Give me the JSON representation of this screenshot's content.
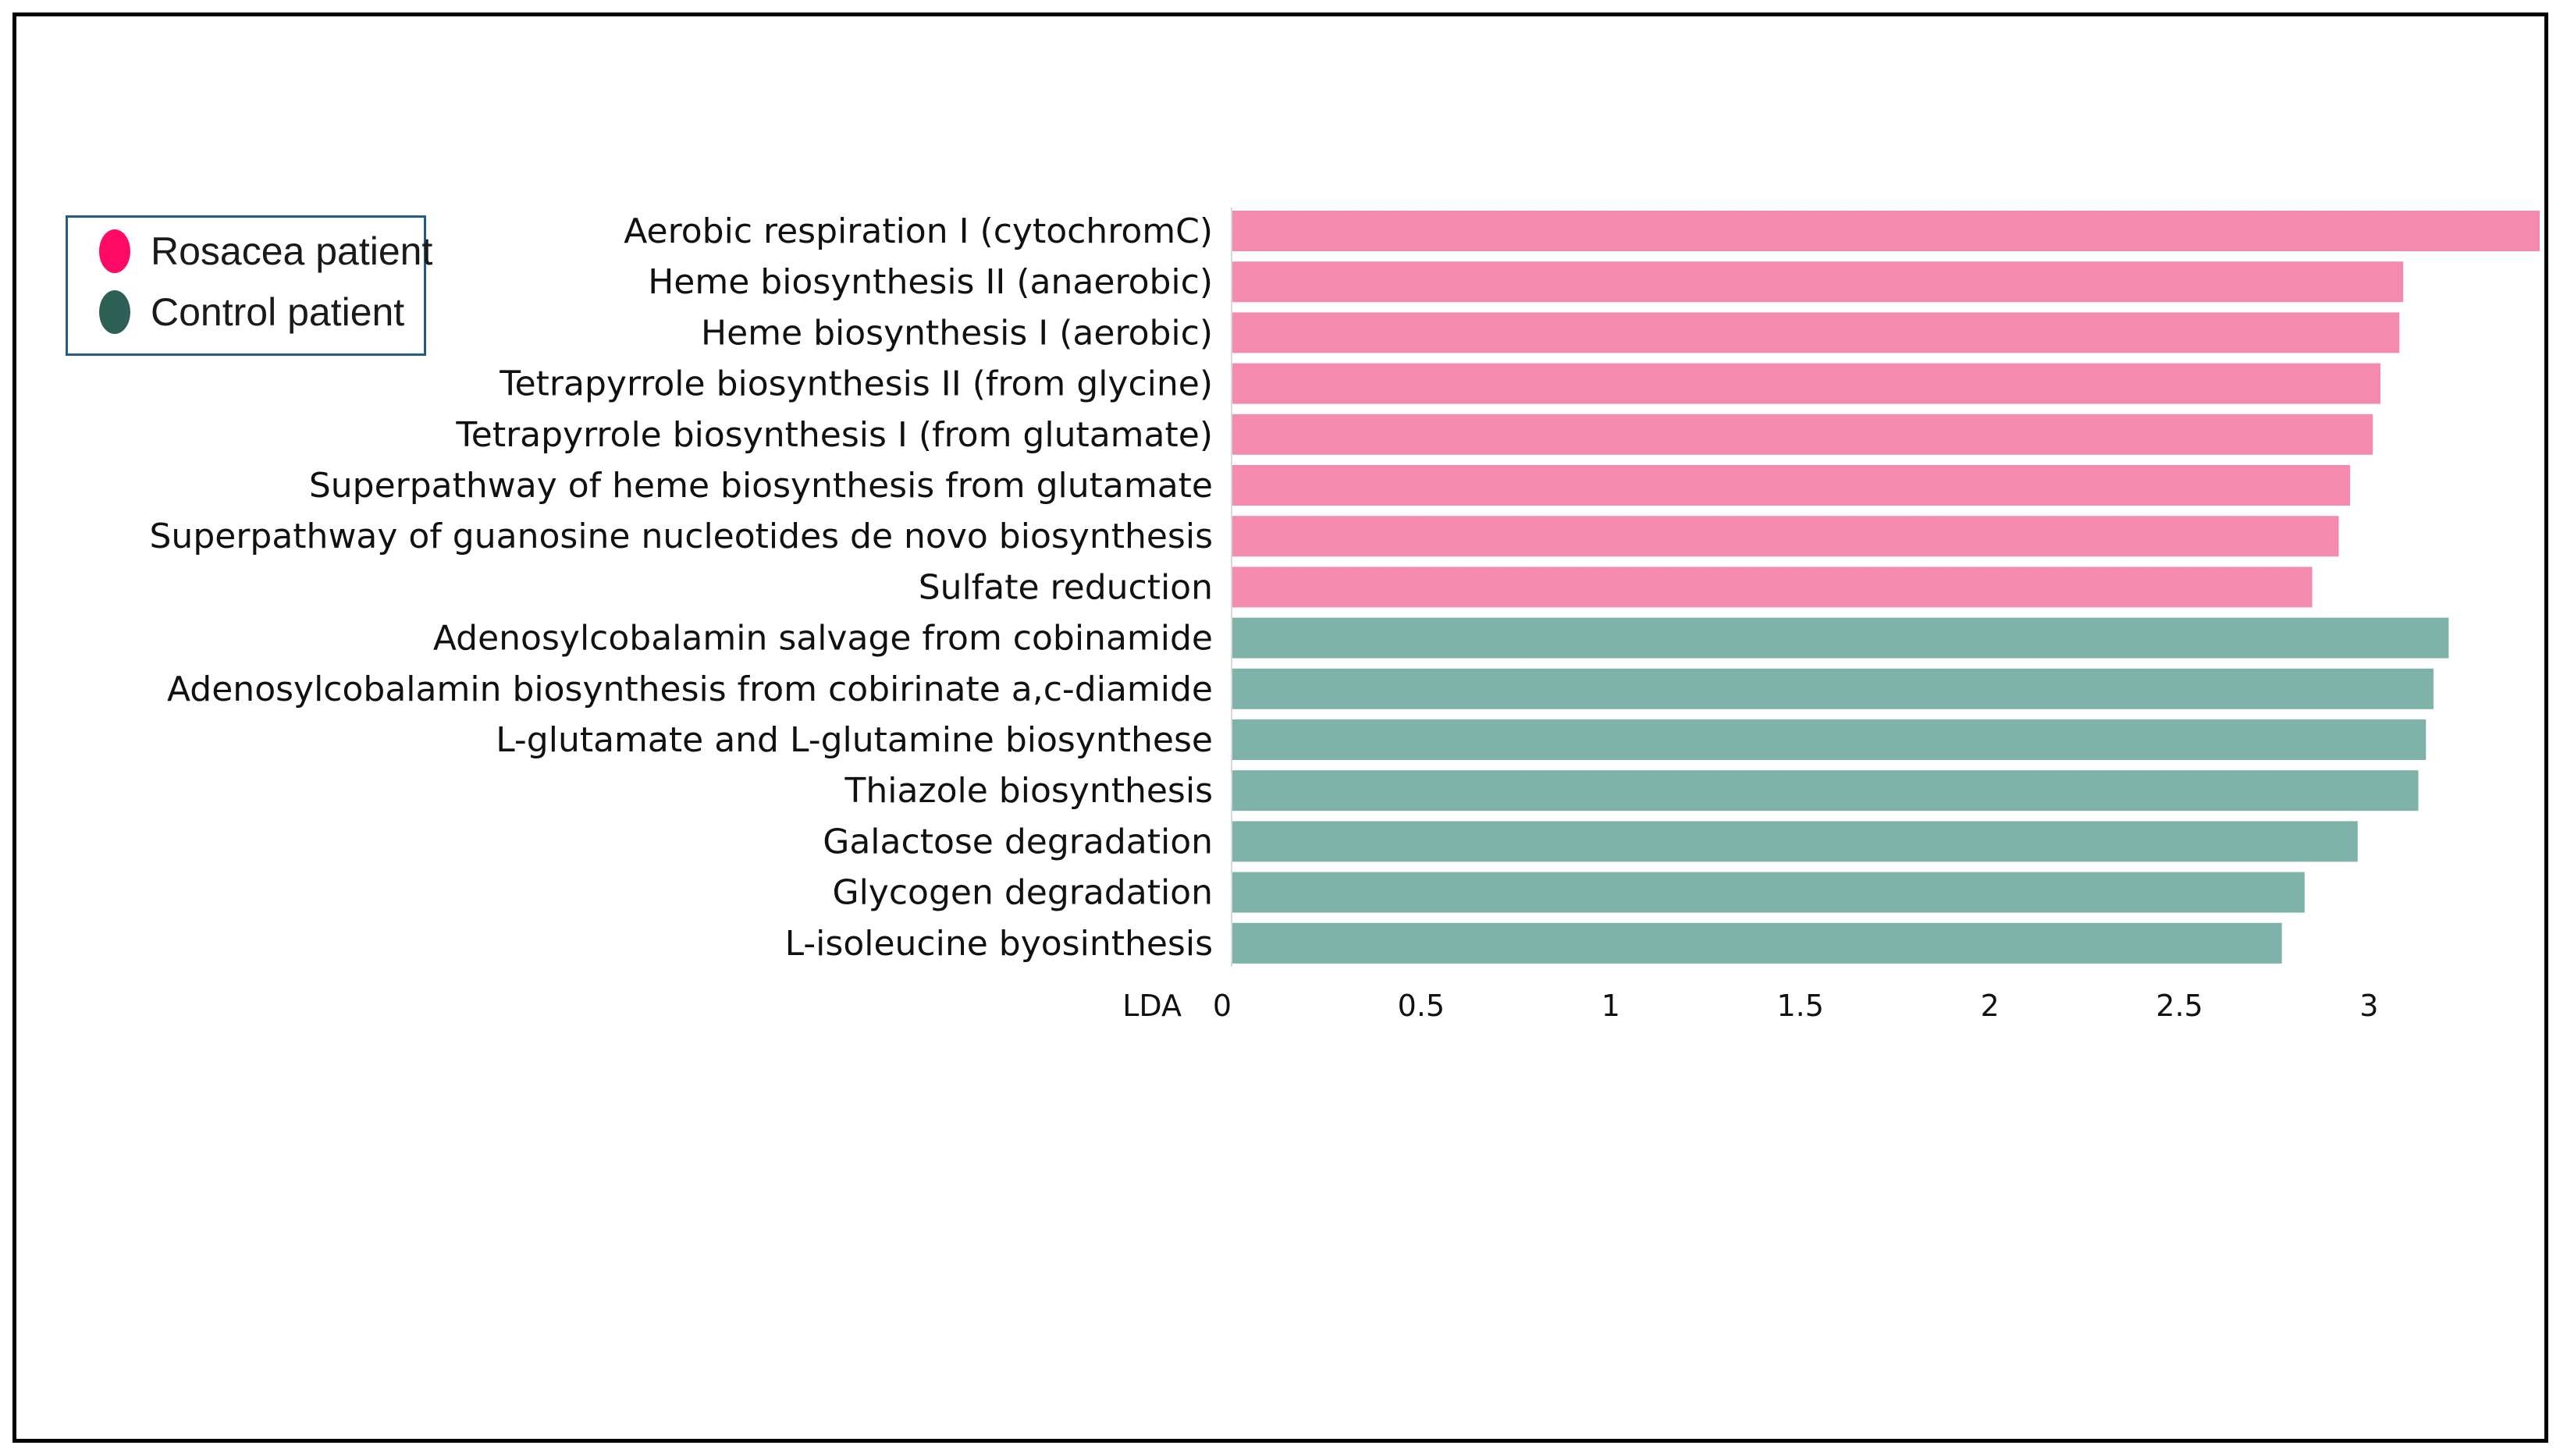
{
  "chart_data": {
    "type": "bar",
    "orientation": "horizontal",
    "xlabel": "LDA",
    "xlim": [
      0,
      3.45
    ],
    "xticks": [
      "0",
      "0.5",
      "1",
      "1.5",
      "2",
      "2.5",
      "3"
    ],
    "grid": false,
    "legend_placement": "top-left",
    "legend": [
      {
        "label": "Rosacea patient",
        "color": "#ff0a64"
      },
      {
        "label": "Control patient",
        "color": "#2e5f55"
      }
    ],
    "categories": [
      "Aerobic respiration I (cytochromC)",
      "Heme biosynthesis II (anaerobic)",
      "Heme biosynthesis I (aerobic)",
      "Tetrapyrrole biosynthesis II (from glycine)",
      "Tetrapyrrole biosynthesis I (from glutamate)",
      "Superpathway of heme biosynthesis from glutamate",
      "Superpathway of guanosine nucleotides de novo biosynthesis",
      "Sulfate reduction",
      "Adenosylcobalamin salvage from cobinamide",
      "Adenosylcobalamin biosynthesis from cobirinate a,c-diamide",
      "L-glutamate and L-glutamine biosynthese",
      "Thiazole biosynthesis",
      "Galactose degradation",
      "Glycogen degradation",
      "L-isoleucine byosinthesis"
    ],
    "values": [
      3.45,
      3.09,
      3.08,
      3.03,
      3.01,
      2.95,
      2.92,
      2.85,
      3.21,
      3.17,
      3.15,
      3.13,
      2.97,
      2.83,
      2.77
    ],
    "groups": [
      "Rosacea patient",
      "Rosacea patient",
      "Rosacea patient",
      "Rosacea patient",
      "Rosacea patient",
      "Rosacea patient",
      "Rosacea patient",
      "Rosacea patient",
      "Control patient",
      "Control patient",
      "Control patient",
      "Control patient",
      "Control patient",
      "Control patient",
      "Control patient"
    ],
    "bar_colors": {
      "Rosacea patient": "#f48aae",
      "Control patient": "#7fb2a8"
    }
  }
}
